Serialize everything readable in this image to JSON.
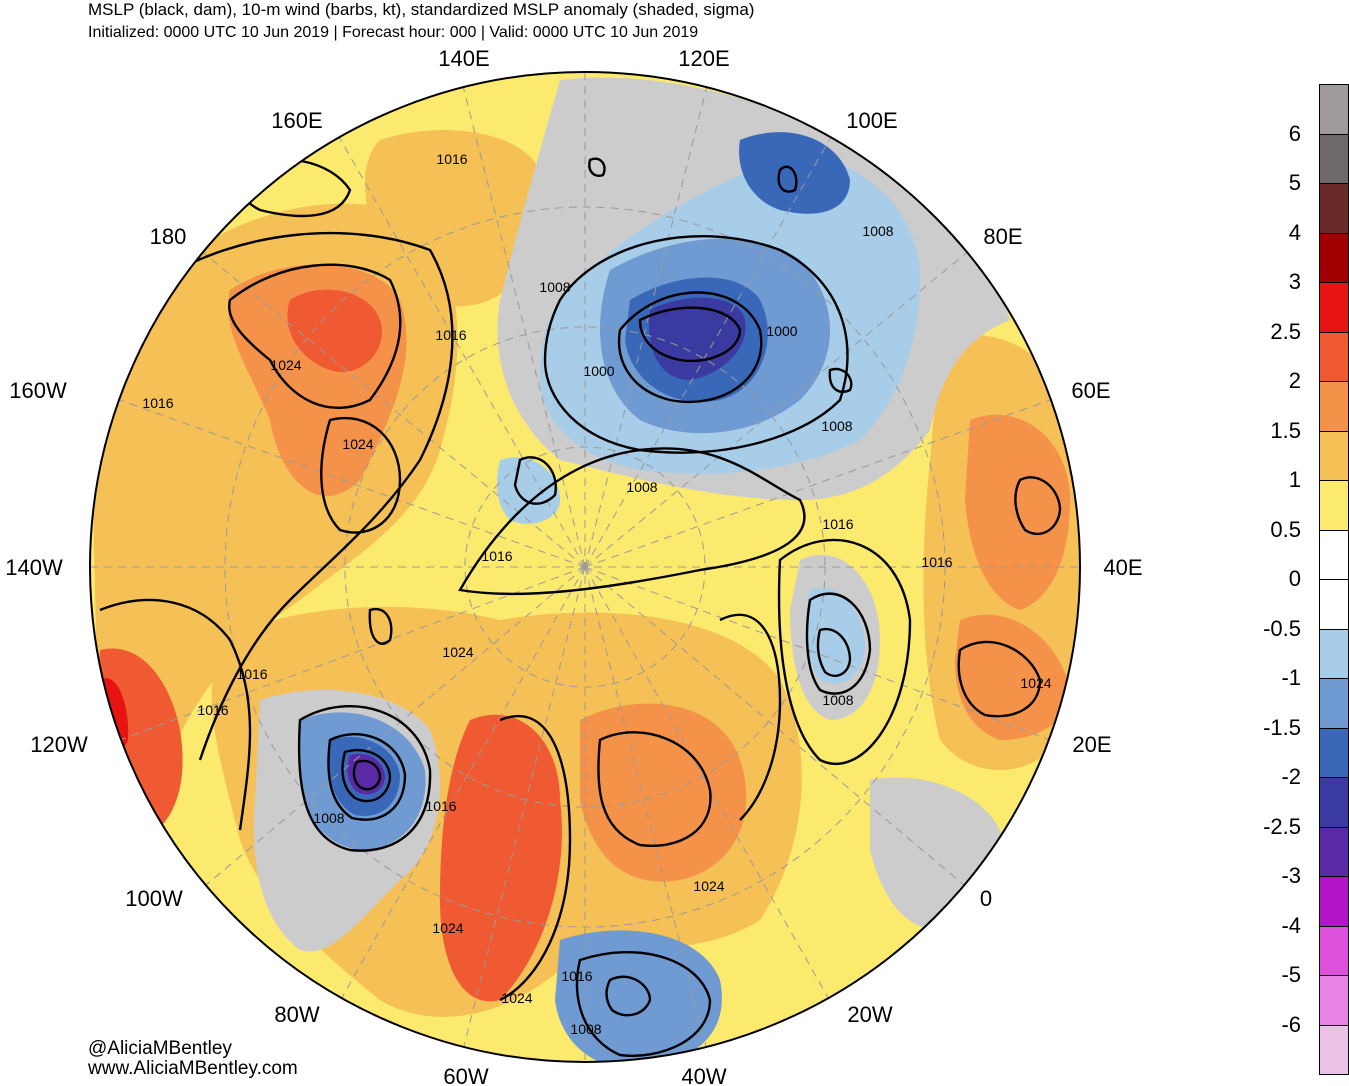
{
  "title_line1": "MSLP (black, dam), 10-m wind (barbs, kt), standardized MSLP anomaly (shaded, sigma)",
  "title_line2": "Initialized: 0000 UTC 10 Jun 2019 | Forecast hour: 000 | Valid: 0000 UTC 10 Jun 2019",
  "credit_handle": "@AliciaMBentley",
  "credit_site": "www.AliciaMBentley.com",
  "longitude_labels": [
    "140E",
    "120E",
    "160E",
    "100E",
    "180",
    "80E",
    "160W",
    "60E",
    "140W",
    "40E",
    "120W",
    "20E",
    "100W",
    "0",
    "80W",
    "20W",
    "60W",
    "40W"
  ],
  "isobar_labels": [
    "1016",
    "1008",
    "1008",
    "1016",
    "1024",
    "1016",
    "1024",
    "1000",
    "1000",
    "1008",
    "1008",
    "1016",
    "1016",
    "1016",
    "1024",
    "1016",
    "1024",
    "1016",
    "1008",
    "1008",
    "1016",
    "1024",
    "1024",
    "1024",
    "1016",
    "1008"
  ],
  "colorbar": {
    "labels": [
      "6",
      "5",
      "4",
      "3",
      "2.5",
      "2",
      "1.5",
      "1",
      "0.5",
      "0",
      "-0.5",
      "-1",
      "-1.5",
      "-2",
      "-2.5",
      "-3",
      "-4",
      "-5",
      "-6"
    ],
    "colors": [
      "#a09a9a",
      "#6f6868",
      "#6a2a2a",
      "#a00000",
      "#e81414",
      "#f05a32",
      "#f4924a",
      "#f5c056",
      "#fcea6e",
      "#ffffff",
      "#ffffff",
      "#a8cde8",
      "#6f9ad2",
      "#3a68b8",
      "#3a3aa0",
      "#5a2aa6",
      "#b414c8",
      "#dc50dc",
      "#e882e4",
      "#eac2e8"
    ],
    "anomaly_colors": {
      "pos_0_5_1": "#fcea6e",
      "pos_1_1_5": "#f5c056",
      "pos_1_5_2": "#f4924a",
      "pos_2_2_5": "#f05a32",
      "neg_0_5_1": "#a8cde8",
      "neg_1_1_5": "#6f9ad2",
      "neg_1_5_2": "#3a68b8",
      "neg_2_2_5": "#3a3aa0",
      "neg_2_5_3": "#5a2aa6",
      "gray": "#cccccc"
    }
  }
}
